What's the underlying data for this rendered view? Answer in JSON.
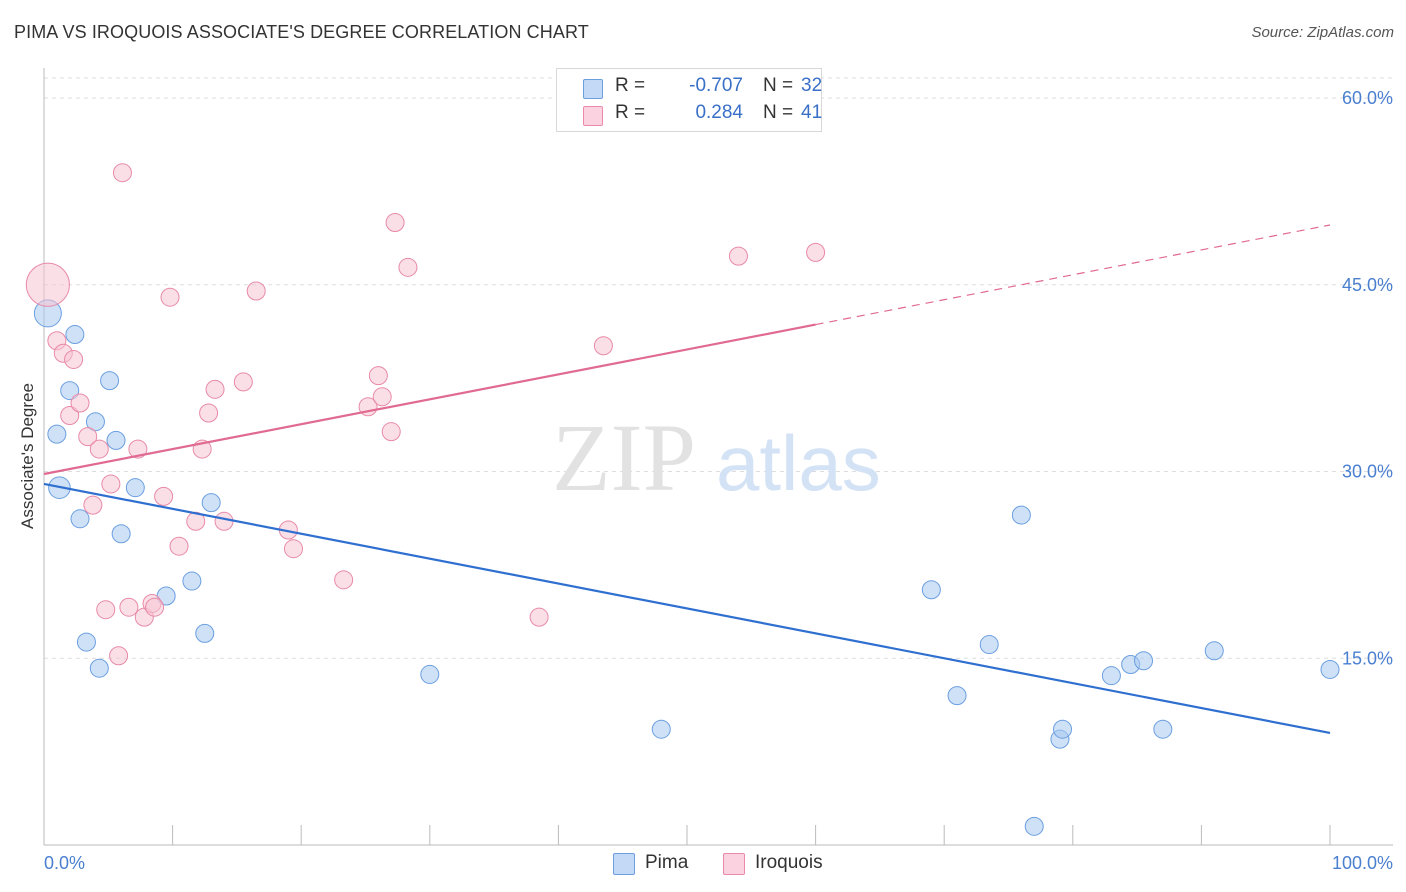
{
  "title": "PIMA VS IROQUOIS ASSOCIATE'S DEGREE CORRELATION CHART",
  "source": "Source: ZipAtlas.com",
  "watermark": {
    "zip": "ZIP",
    "atlas": "atlas"
  },
  "legend": {
    "series": [
      {
        "name": "Pima",
        "r_label": "R =",
        "r_value": "-0.707",
        "n_label": "N =",
        "n_value": "32",
        "color": "#a8c8f0",
        "stroke": "#6b9fe0"
      },
      {
        "name": "Iroquois",
        "r_label": "R =",
        "r_value": "0.284",
        "n_label": "N =",
        "n_value": "41",
        "color": "#f8bccf",
        "stroke": "#e88aa8"
      }
    ]
  },
  "colors": {
    "pima_fill": "#a8c8f0",
    "pima_stroke": "#6b9fe0",
    "pima_line": "#2f6fd0",
    "iroq_fill": "#f8c4d4",
    "iroq_stroke": "#e88aa8",
    "iroq_line": "#e06a92",
    "tick_text": "#4a7fd0",
    "grid": "#dddddd"
  },
  "chart_data": {
    "type": "scatter",
    "title": "PIMA VS IROQUOIS ASSOCIATE'S DEGREE CORRELATION CHART",
    "xlabel": "",
    "ylabel": "Associate's Degree",
    "xlim": [
      0,
      100
    ],
    "ylim": [
      0,
      62
    ],
    "x_tick_labels": [
      "0.0%",
      "100.0%"
    ],
    "y_ticks": [
      15,
      30,
      45,
      60
    ],
    "y_tick_labels": [
      "15.0%",
      "30.0%",
      "45.0%",
      "60.0%"
    ],
    "series": [
      {
        "name": "Pima",
        "points": [
          [
            0.3,
            42.7,
            1.5
          ],
          [
            1.0,
            33.0,
            1
          ],
          [
            1.2,
            28.7,
            1.2
          ],
          [
            2.0,
            36.5,
            1
          ],
          [
            2.4,
            41.0,
            1
          ],
          [
            2.8,
            26.2,
            1
          ],
          [
            3.3,
            16.3,
            1
          ],
          [
            4.0,
            34.0,
            1
          ],
          [
            4.3,
            14.2,
            1
          ],
          [
            5.1,
            37.3,
            1
          ],
          [
            5.6,
            32.5,
            1
          ],
          [
            6.0,
            25.0,
            1
          ],
          [
            7.1,
            28.7,
            1
          ],
          [
            9.5,
            20.0,
            1
          ],
          [
            11.5,
            21.2,
            1
          ],
          [
            12.5,
            17.0,
            1
          ],
          [
            13.0,
            27.5,
            1
          ],
          [
            30.0,
            13.7,
            1
          ],
          [
            48.0,
            9.3,
            1
          ],
          [
            69.0,
            20.5,
            1
          ],
          [
            71.0,
            12.0,
            1
          ],
          [
            73.5,
            16.1,
            1
          ],
          [
            76.0,
            26.5,
            1
          ],
          [
            77.0,
            1.5,
            1
          ],
          [
            79.0,
            8.5,
            1
          ],
          [
            79.2,
            9.3,
            1
          ],
          [
            83.0,
            13.6,
            1
          ],
          [
            84.5,
            14.5,
            1
          ],
          [
            85.5,
            14.8,
            1
          ],
          [
            87.0,
            9.3,
            1
          ],
          [
            91.0,
            15.6,
            1
          ],
          [
            100.0,
            14.1,
            1
          ]
        ],
        "trend": {
          "x": [
            0,
            100
          ],
          "y": [
            29.0,
            9.0
          ],
          "style": "solid"
        }
      },
      {
        "name": "Iroquois",
        "points": [
          [
            0.3,
            45.0,
            2.4
          ],
          [
            1.0,
            40.5,
            1
          ],
          [
            1.5,
            39.5,
            1
          ],
          [
            2.0,
            34.5,
            1
          ],
          [
            2.3,
            39.0,
            1
          ],
          [
            2.8,
            35.5,
            1
          ],
          [
            3.4,
            32.8,
            1
          ],
          [
            3.8,
            27.3,
            1
          ],
          [
            4.3,
            31.8,
            1
          ],
          [
            4.8,
            18.9,
            1
          ],
          [
            5.2,
            29.0,
            1
          ],
          [
            5.8,
            15.2,
            1
          ],
          [
            6.1,
            54.0,
            1
          ],
          [
            6.6,
            19.1,
            1
          ],
          [
            7.3,
            31.8,
            1
          ],
          [
            7.8,
            18.3,
            1
          ],
          [
            8.4,
            19.4,
            1
          ],
          [
            8.6,
            19.1,
            1
          ],
          [
            9.3,
            28.0,
            1
          ],
          [
            9.8,
            44.0,
            1
          ],
          [
            10.5,
            24.0,
            1
          ],
          [
            11.8,
            26.0,
            1
          ],
          [
            12.3,
            31.8,
            1
          ],
          [
            12.8,
            34.7,
            1
          ],
          [
            13.3,
            36.6,
            1
          ],
          [
            14.0,
            26.0,
            1
          ],
          [
            15.5,
            37.2,
            1
          ],
          [
            16.5,
            44.5,
            1
          ],
          [
            19.0,
            25.3,
            1
          ],
          [
            19.4,
            23.8,
            1
          ],
          [
            23.3,
            21.3,
            1
          ],
          [
            25.2,
            35.2,
            1
          ],
          [
            26.0,
            37.7,
            1
          ],
          [
            26.3,
            36.0,
            1
          ],
          [
            27.0,
            33.2,
            1
          ],
          [
            27.3,
            50.0,
            1
          ],
          [
            28.3,
            46.4,
            1
          ],
          [
            38.5,
            18.3,
            1
          ],
          [
            43.5,
            40.1,
            1
          ],
          [
            54.0,
            47.3,
            1
          ],
          [
            60.0,
            47.6,
            1
          ]
        ],
        "trend": {
          "x": [
            0,
            60
          ],
          "y": [
            29.8,
            41.8
          ],
          "style": "solid",
          "extension": {
            "x": [
              60,
              100
            ],
            "y": [
              41.8,
              49.8
            ],
            "style": "dashed"
          }
        }
      }
    ]
  }
}
